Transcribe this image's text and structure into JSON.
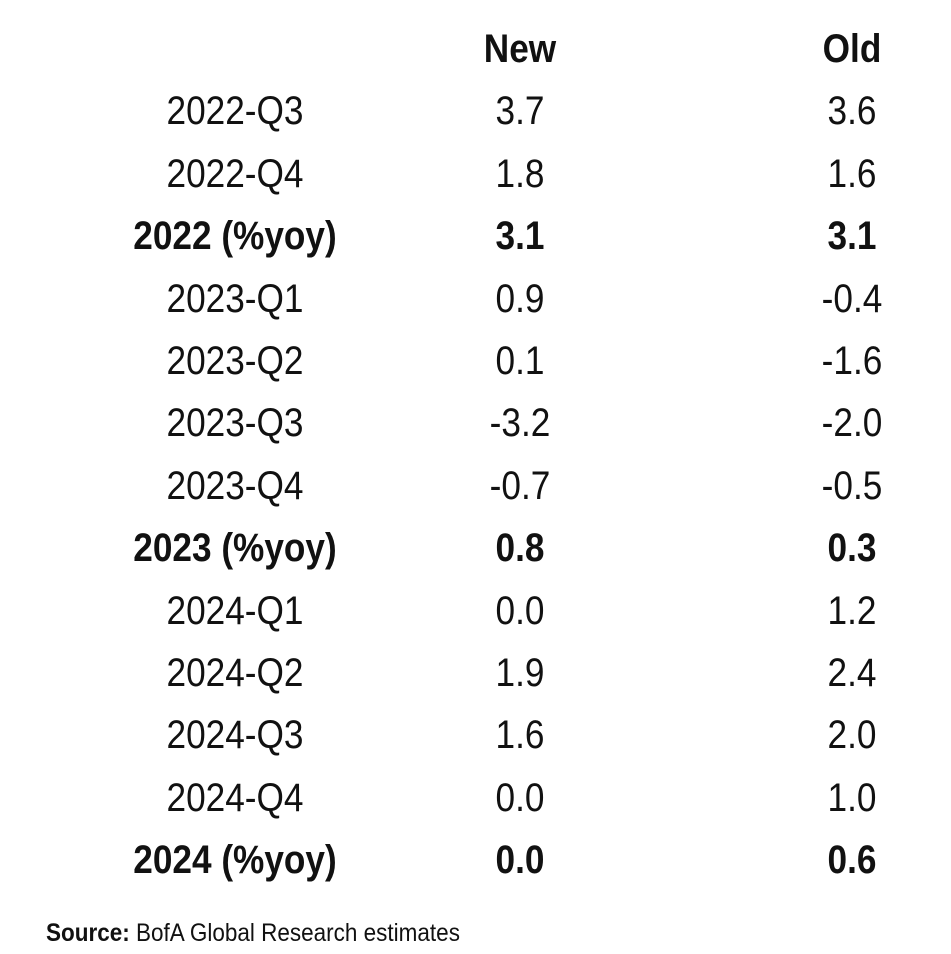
{
  "table": {
    "headers": {
      "label": "",
      "new": "New",
      "old": "Old"
    },
    "rows": [
      {
        "label": "2022-Q3",
        "new": "3.7",
        "old": "3.6",
        "bold": false
      },
      {
        "label": "2022-Q4",
        "new": "1.8",
        "old": "1.6",
        "bold": false
      },
      {
        "label": "2022 (%yoy)",
        "new": "3.1",
        "old": "3.1",
        "bold": true
      },
      {
        "label": "2023-Q1",
        "new": "0.9",
        "old": "-0.4",
        "bold": false
      },
      {
        "label": "2023-Q2",
        "new": "0.1",
        "old": "-1.6",
        "bold": false
      },
      {
        "label": "2023-Q3",
        "new": "-3.2",
        "old": "-2.0",
        "bold": false
      },
      {
        "label": "2023-Q4",
        "new": "-0.7",
        "old": "-0.5",
        "bold": false
      },
      {
        "label": "2023 (%yoy)",
        "new": "0.8",
        "old": "0.3",
        "bold": true
      },
      {
        "label": "2024-Q1",
        "new": "0.0",
        "old": "1.2",
        "bold": false
      },
      {
        "label": "2024-Q2",
        "new": "1.9",
        "old": "2.4",
        "bold": false
      },
      {
        "label": "2024-Q3",
        "new": "1.6",
        "old": "2.0",
        "bold": false
      },
      {
        "label": "2024-Q4",
        "new": "0.0",
        "old": "1.0",
        "bold": false
      },
      {
        "label": "2024 (%yoy)",
        "new": "0.0",
        "old": "0.6",
        "bold": true
      }
    ]
  },
  "source": {
    "label": "Source:",
    "text": " BofA Global Research estimates"
  }
}
